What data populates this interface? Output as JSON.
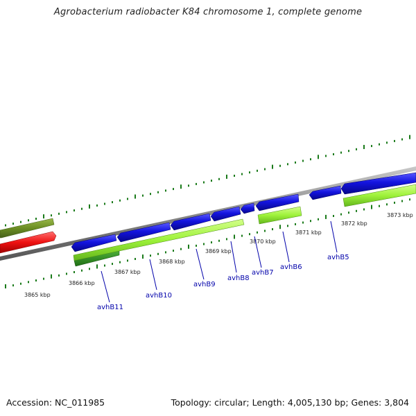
{
  "title": "Agrobacterium radiobacter K84 chromosome 1, complete genome",
  "footer": {
    "accession": "Accession: NC_011985",
    "topology": "Topology: circular; Length: 4,005,130 bp; Genes: 3,804"
  },
  "colors": {
    "backbone": "#8a8a8a",
    "forward_gene": "#1414e0",
    "reverse_cds": "#9ef23a",
    "reverse_cds_dark": "#2e8b1e",
    "olive_gene": "#6b8e23",
    "red_gene": "#ee1111",
    "tick": "#1a7a1a",
    "label": "#0000aa"
  },
  "scale_labels": [
    "3865 kbp",
    "3866 kbp",
    "3867 kbp",
    "3868 kbp",
    "3869 kbp",
    "3870 kbp",
    "3871 kbp",
    "3872 kbp",
    "3873 kbp"
  ],
  "gene_labels": [
    "avhB11",
    "avhB10",
    "avhB9",
    "avhB8",
    "avhB7",
    "avhB6",
    "avhB5"
  ]
}
